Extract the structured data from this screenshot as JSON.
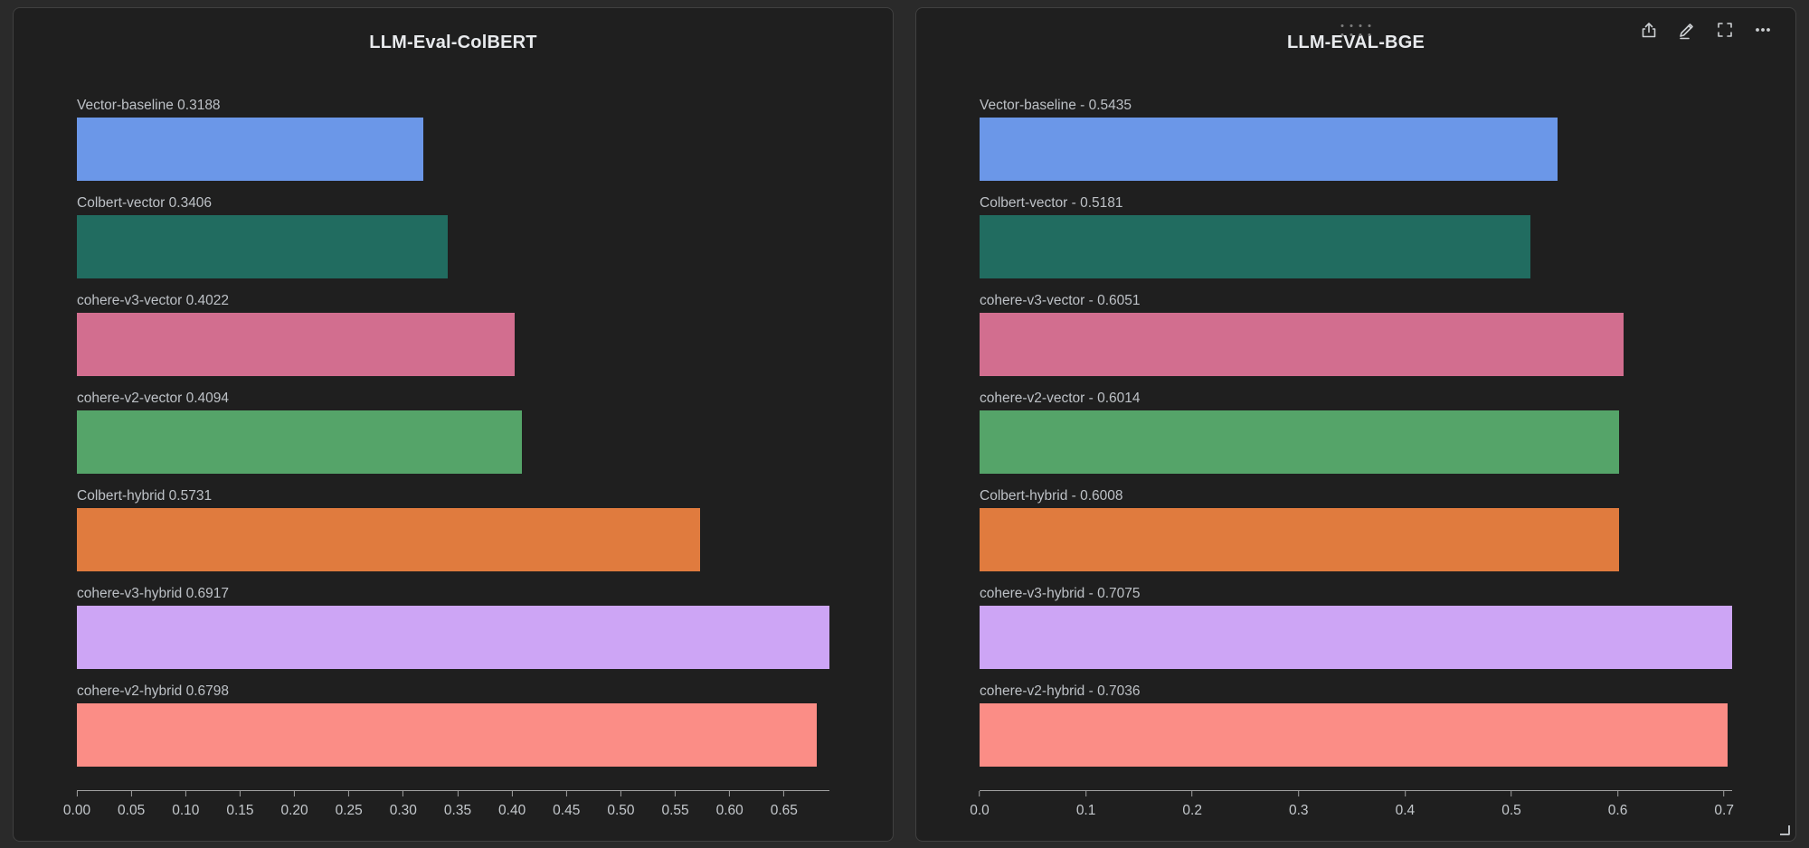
{
  "chart_data": [
    {
      "type": "bar",
      "orientation": "horizontal",
      "title": "LLM-Eval-ColBERT",
      "categories": [
        "Vector-baseline",
        "Colbert-vector",
        "cohere-v3-vector",
        "cohere-v2-vector",
        "Colbert-hybrid",
        "cohere-v3-hybrid",
        "cohere-v2-hybrid"
      ],
      "values": [
        0.3188,
        0.3406,
        0.4022,
        0.4094,
        0.5731,
        0.6917,
        0.6798
      ],
      "bar_labels": [
        "Vector-baseline 0.3188",
        "Colbert-vector 0.3406",
        "cohere-v3-vector 0.4022",
        "cohere-v2-vector 0.4094",
        "Colbert-hybrid 0.5731",
        "cohere-v3-hybrid 0.6917",
        "cohere-v2-hybrid 0.6798"
      ],
      "bar_colors": [
        "#6b97e8",
        "#216c60",
        "#d26e8f",
        "#55a469",
        "#e07b3e",
        "#cda5f5",
        "#fb8d86"
      ],
      "xlim": [
        0,
        0.6917
      ],
      "x_ticks": [
        "0.00",
        "0.05",
        "0.10",
        "0.15",
        "0.20",
        "0.25",
        "0.30",
        "0.35",
        "0.40",
        "0.45",
        "0.50",
        "0.55",
        "0.60",
        "0.65"
      ],
      "x_tick_values": [
        0,
        0.05,
        0.1,
        0.15,
        0.2,
        0.25,
        0.3,
        0.35,
        0.4,
        0.45,
        0.5,
        0.55,
        0.6,
        0.65
      ],
      "grid": false,
      "legend": false
    },
    {
      "type": "bar",
      "orientation": "horizontal",
      "title": "LLM-EVAL-BGE",
      "categories": [
        "Vector-baseline",
        "Colbert-vector",
        "cohere-v3-vector",
        "cohere-v2-vector",
        "Colbert-hybrid",
        "cohere-v3-hybrid",
        "cohere-v2-hybrid"
      ],
      "values": [
        0.5435,
        0.5181,
        0.6051,
        0.6014,
        0.6008,
        0.7075,
        0.7036
      ],
      "bar_labels": [
        "Vector-baseline - 0.5435",
        "Colbert-vector - 0.5181",
        "cohere-v3-vector - 0.6051",
        "cohere-v2-vector - 0.6014",
        "Colbert-hybrid - 0.6008",
        "cohere-v3-hybrid - 0.7075",
        "cohere-v2-hybrid - 0.7036"
      ],
      "bar_colors": [
        "#6b97e8",
        "#216c60",
        "#d26e8f",
        "#55a469",
        "#e07b3e",
        "#cda5f5",
        "#fb8d86"
      ],
      "xlim": [
        0,
        0.7075
      ],
      "x_ticks": [
        "0.0",
        "0.1",
        "0.2",
        "0.3",
        "0.4",
        "0.5",
        "0.6",
        "0.7"
      ],
      "x_tick_values": [
        0,
        0.1,
        0.2,
        0.3,
        0.4,
        0.5,
        0.6,
        0.7
      ],
      "grid": false,
      "legend": false
    }
  ],
  "panel_toolbar": {
    "icons": [
      "share-icon",
      "edit-icon",
      "fullscreen-icon",
      "more-options-icon"
    ]
  }
}
